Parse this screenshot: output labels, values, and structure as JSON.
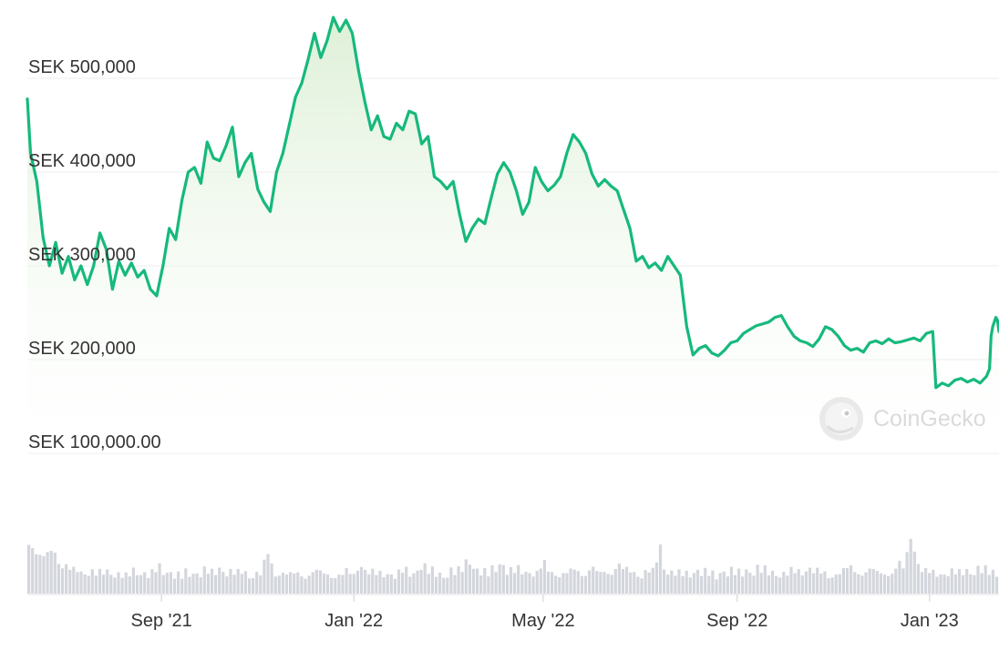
{
  "watermark": {
    "text": "CoinGecko",
    "icon": "gecko-logo-icon"
  },
  "colors": {
    "line": "#16b97c",
    "area_top": "#dcefd5",
    "area_bottom": "#ffffff",
    "volume": "#d3d6dc",
    "grid": "#ececec",
    "text": "#333333"
  },
  "chart_data": {
    "type": "area",
    "currency": "SEK",
    "title": "",
    "xlabel": "",
    "ylabel": "",
    "ylim": [
      100000,
      600000
    ],
    "grid": true,
    "legend": "none",
    "y_ticks": [
      {
        "value": 500000,
        "label": "SEK 500,000"
      },
      {
        "value": 400000,
        "label": "SEK 400,000"
      },
      {
        "value": 300000,
        "label": "SEK 300,000"
      },
      {
        "value": 200000,
        "label": "SEK 200,000"
      },
      {
        "value": 100000,
        "label": "SEK 100,000.00"
      }
    ],
    "x_ticks": [
      {
        "date": "2021-09-01",
        "label": "Sep '21"
      },
      {
        "date": "2022-01-01",
        "label": "Jan '22"
      },
      {
        "date": "2022-05-01",
        "label": "May '22"
      },
      {
        "date": "2022-09-01",
        "label": "Sep '22"
      },
      {
        "date": "2023-01-01",
        "label": "Jan '23"
      }
    ],
    "x_range": [
      "2021-06-08",
      "2023-02-14"
    ],
    "series": [
      {
        "values": [
          [
            "2021-06-08",
            478000
          ],
          [
            "2021-06-10",
            420000
          ],
          [
            "2021-06-14",
            390000
          ],
          [
            "2021-06-18",
            330000
          ],
          [
            "2021-06-22",
            300000
          ],
          [
            "2021-06-26",
            325000
          ],
          [
            "2021-06-30",
            292000
          ],
          [
            "2021-07-04",
            310000
          ],
          [
            "2021-07-08",
            285000
          ],
          [
            "2021-07-12",
            300000
          ],
          [
            "2021-07-16",
            280000
          ],
          [
            "2021-07-20",
            300000
          ],
          [
            "2021-07-24",
            335000
          ],
          [
            "2021-07-28",
            318000
          ],
          [
            "2021-08-01",
            275000
          ],
          [
            "2021-08-05",
            305000
          ],
          [
            "2021-08-09",
            290000
          ],
          [
            "2021-08-13",
            303000
          ],
          [
            "2021-08-17",
            288000
          ],
          [
            "2021-08-21",
            295000
          ],
          [
            "2021-08-25",
            275000
          ],
          [
            "2021-08-29",
            268000
          ],
          [
            "2021-09-02",
            300000
          ],
          [
            "2021-09-06",
            340000
          ],
          [
            "2021-09-10",
            328000
          ],
          [
            "2021-09-14",
            370000
          ],
          [
            "2021-09-18",
            400000
          ],
          [
            "2021-09-22",
            405000
          ],
          [
            "2021-09-26",
            388000
          ],
          [
            "2021-09-30",
            432000
          ],
          [
            "2021-10-04",
            415000
          ],
          [
            "2021-10-08",
            412000
          ],
          [
            "2021-10-12",
            428000
          ],
          [
            "2021-10-16",
            448000
          ],
          [
            "2021-10-20",
            395000
          ],
          [
            "2021-10-24",
            410000
          ],
          [
            "2021-10-28",
            420000
          ],
          [
            "2021-11-01",
            382000
          ],
          [
            "2021-11-05",
            368000
          ],
          [
            "2021-11-09",
            358000
          ],
          [
            "2021-11-13",
            400000
          ],
          [
            "2021-11-17",
            420000
          ],
          [
            "2021-11-21",
            450000
          ],
          [
            "2021-11-25",
            480000
          ],
          [
            "2021-11-29",
            495000
          ],
          [
            "2021-12-03",
            520000
          ],
          [
            "2021-12-07",
            548000
          ],
          [
            "2021-12-11",
            522000
          ],
          [
            "2021-12-15",
            540000
          ],
          [
            "2021-12-19",
            565000
          ],
          [
            "2021-12-23",
            550000
          ],
          [
            "2021-12-27",
            562000
          ],
          [
            "2021-12-31",
            548000
          ],
          [
            "2022-01-04",
            508000
          ],
          [
            "2022-01-08",
            475000
          ],
          [
            "2022-01-12",
            445000
          ],
          [
            "2022-01-16",
            460000
          ],
          [
            "2022-01-20",
            438000
          ],
          [
            "2022-01-24",
            435000
          ],
          [
            "2022-01-28",
            452000
          ],
          [
            "2022-02-01",
            445000
          ],
          [
            "2022-02-05",
            465000
          ],
          [
            "2022-02-09",
            462000
          ],
          [
            "2022-02-13",
            430000
          ],
          [
            "2022-02-17",
            438000
          ],
          [
            "2022-02-21",
            395000
          ],
          [
            "2022-02-25",
            390000
          ],
          [
            "2022-03-01",
            382000
          ],
          [
            "2022-03-05",
            390000
          ],
          [
            "2022-03-09",
            355000
          ],
          [
            "2022-03-13",
            326000
          ],
          [
            "2022-03-17",
            340000
          ],
          [
            "2022-03-21",
            350000
          ],
          [
            "2022-03-25",
            345000
          ],
          [
            "2022-03-29",
            372000
          ],
          [
            "2022-04-02",
            398000
          ],
          [
            "2022-04-06",
            410000
          ],
          [
            "2022-04-10",
            400000
          ],
          [
            "2022-04-14",
            380000
          ],
          [
            "2022-04-18",
            355000
          ],
          [
            "2022-04-22",
            368000
          ],
          [
            "2022-04-26",
            405000
          ],
          [
            "2022-04-30",
            390000
          ],
          [
            "2022-05-04",
            380000
          ],
          [
            "2022-05-08",
            386000
          ],
          [
            "2022-05-12",
            395000
          ],
          [
            "2022-05-16",
            420000
          ],
          [
            "2022-05-20",
            440000
          ],
          [
            "2022-05-24",
            432000
          ],
          [
            "2022-05-28",
            420000
          ],
          [
            "2022-06-01",
            398000
          ],
          [
            "2022-06-05",
            385000
          ],
          [
            "2022-06-09",
            392000
          ],
          [
            "2022-06-13",
            385000
          ],
          [
            "2022-06-17",
            380000
          ],
          [
            "2022-06-21",
            360000
          ],
          [
            "2022-06-25",
            340000
          ],
          [
            "2022-06-29",
            305000
          ],
          [
            "2022-07-03",
            310000
          ],
          [
            "2022-07-07",
            298000
          ],
          [
            "2022-07-11",
            303000
          ],
          [
            "2022-07-15",
            295000
          ],
          [
            "2022-07-19",
            310000
          ],
          [
            "2022-07-23",
            300000
          ],
          [
            "2022-07-27",
            290000
          ],
          [
            "2022-07-31",
            235000
          ],
          [
            "2022-08-04",
            205000
          ],
          [
            "2022-08-08",
            212000
          ],
          [
            "2022-08-12",
            215000
          ],
          [
            "2022-08-16",
            207000
          ],
          [
            "2022-08-20",
            204000
          ],
          [
            "2022-08-24",
            210000
          ],
          [
            "2022-08-28",
            218000
          ],
          [
            "2022-09-01",
            220000
          ],
          [
            "2022-09-05",
            228000
          ],
          [
            "2022-09-09",
            232000
          ],
          [
            "2022-09-13",
            236000
          ],
          [
            "2022-09-17",
            238000
          ],
          [
            "2022-09-21",
            240000
          ],
          [
            "2022-09-25",
            245000
          ],
          [
            "2022-09-29",
            247000
          ],
          [
            "2022-10-03",
            235000
          ],
          [
            "2022-10-07",
            225000
          ],
          [
            "2022-10-11",
            220000
          ],
          [
            "2022-10-15",
            218000
          ],
          [
            "2022-10-19",
            214000
          ],
          [
            "2022-10-23",
            222000
          ],
          [
            "2022-10-27",
            235000
          ],
          [
            "2022-10-31",
            232000
          ],
          [
            "2022-11-04",
            225000
          ],
          [
            "2022-11-08",
            215000
          ],
          [
            "2022-11-12",
            210000
          ],
          [
            "2022-11-16",
            212000
          ],
          [
            "2022-11-20",
            208000
          ],
          [
            "2022-11-24",
            218000
          ],
          [
            "2022-11-28",
            220000
          ],
          [
            "2022-12-02",
            217000
          ],
          [
            "2022-12-06",
            222000
          ],
          [
            "2022-12-10",
            218000
          ],
          [
            "2022-12-14",
            219000
          ],
          [
            "2022-12-18",
            221000
          ],
          [
            "2022-12-22",
            223000
          ],
          [
            "2022-12-26",
            220000
          ],
          [
            "2022-12-30",
            228000
          ],
          [
            "2023-01-03",
            230000
          ],
          [
            "2023-01-05",
            170000
          ],
          [
            "2023-01-09",
            175000
          ],
          [
            "2023-01-13",
            172000
          ],
          [
            "2023-01-17",
            178000
          ],
          [
            "2023-01-21",
            180000
          ],
          [
            "2023-01-25",
            176000
          ],
          [
            "2023-01-29",
            179000
          ],
          [
            "2023-02-02",
            175000
          ],
          [
            "2023-02-06",
            182000
          ],
          [
            "2023-02-08",
            190000
          ],
          [
            "2023-02-09",
            225000
          ],
          [
            "2023-02-10",
            235000
          ],
          [
            "2023-02-11",
            240000
          ],
          [
            "2023-02-12",
            245000
          ],
          [
            "2023-02-13",
            242000
          ],
          [
            "2023-02-14",
            230000
          ]
        ]
      }
    ],
    "volume_profile": [
      0.85,
      0.55,
      0.45,
      0.5,
      0.7,
      0.4,
      0.35,
      0.3,
      0.32,
      0.28,
      0.3,
      0.25,
      0.28,
      0.3,
      0.26,
      0.24,
      0.22,
      0.3,
      0.28,
      0.25,
      0.24,
      0.35,
      0.3,
      0.27,
      0.24,
      0.22,
      0.3,
      0.25,
      0.28,
      0.3,
      0.26,
      0.33,
      0.3,
      0.28,
      0.26,
      0.3,
      0.24,
      0.27,
      0.25,
      0.55,
      0.28,
      0.3,
      0.26,
      0.25,
      0.27,
      0.24,
      0.28,
      0.3,
      0.26,
      0.25,
      0.27,
      0.24,
      0.3,
      0.22,
      0.45,
      0.3,
      0.28,
      0.25,
      0.27,
      0.26,
      0.24,
      0.3,
      0.28,
      0.25,
      0.4,
      0.3,
      0.28,
      0.25,
      0.22,
      0.3,
      0.27,
      0.35,
      0.45,
      0.3,
      0.28,
      0.25,
      0.35,
      0.42,
      0.3,
      0.28,
      0.32,
      0.3,
      0.28,
      0.26,
      0.4,
      0.3,
      0.28,
      0.25,
      0.27,
      0.32,
      0.3,
      0.28,
      0.35,
      0.25,
      0.3,
      0.28,
      0.4,
      0.32,
      0.3,
      0.28,
      0.26,
      0.3,
      0.28,
      0.62,
      0.3,
      0.28,
      0.26,
      0.25,
      0.27,
      0.3,
      0.28,
      0.26,
      0.24,
      0.27,
      0.3,
      0.28,
      0.26,
      0.3,
      0.28,
      0.32,
      0.3,
      0.28,
      0.26,
      0.25,
      0.27,
      0.3,
      0.28,
      0.35,
      0.3,
      0.28,
      0.26,
      0.24,
      0.27,
      0.3,
      0.35,
      0.3,
      0.28,
      0.32,
      0.3,
      0.26,
      0.3,
      0.28,
      0.4,
      0.3,
      0.85,
      0.45,
      0.3,
      0.28,
      0.26,
      0.25,
      0.3,
      0.28,
      0.26,
      0.3,
      0.28,
      0.32,
      0.3,
      0.28,
      0.26
    ]
  }
}
